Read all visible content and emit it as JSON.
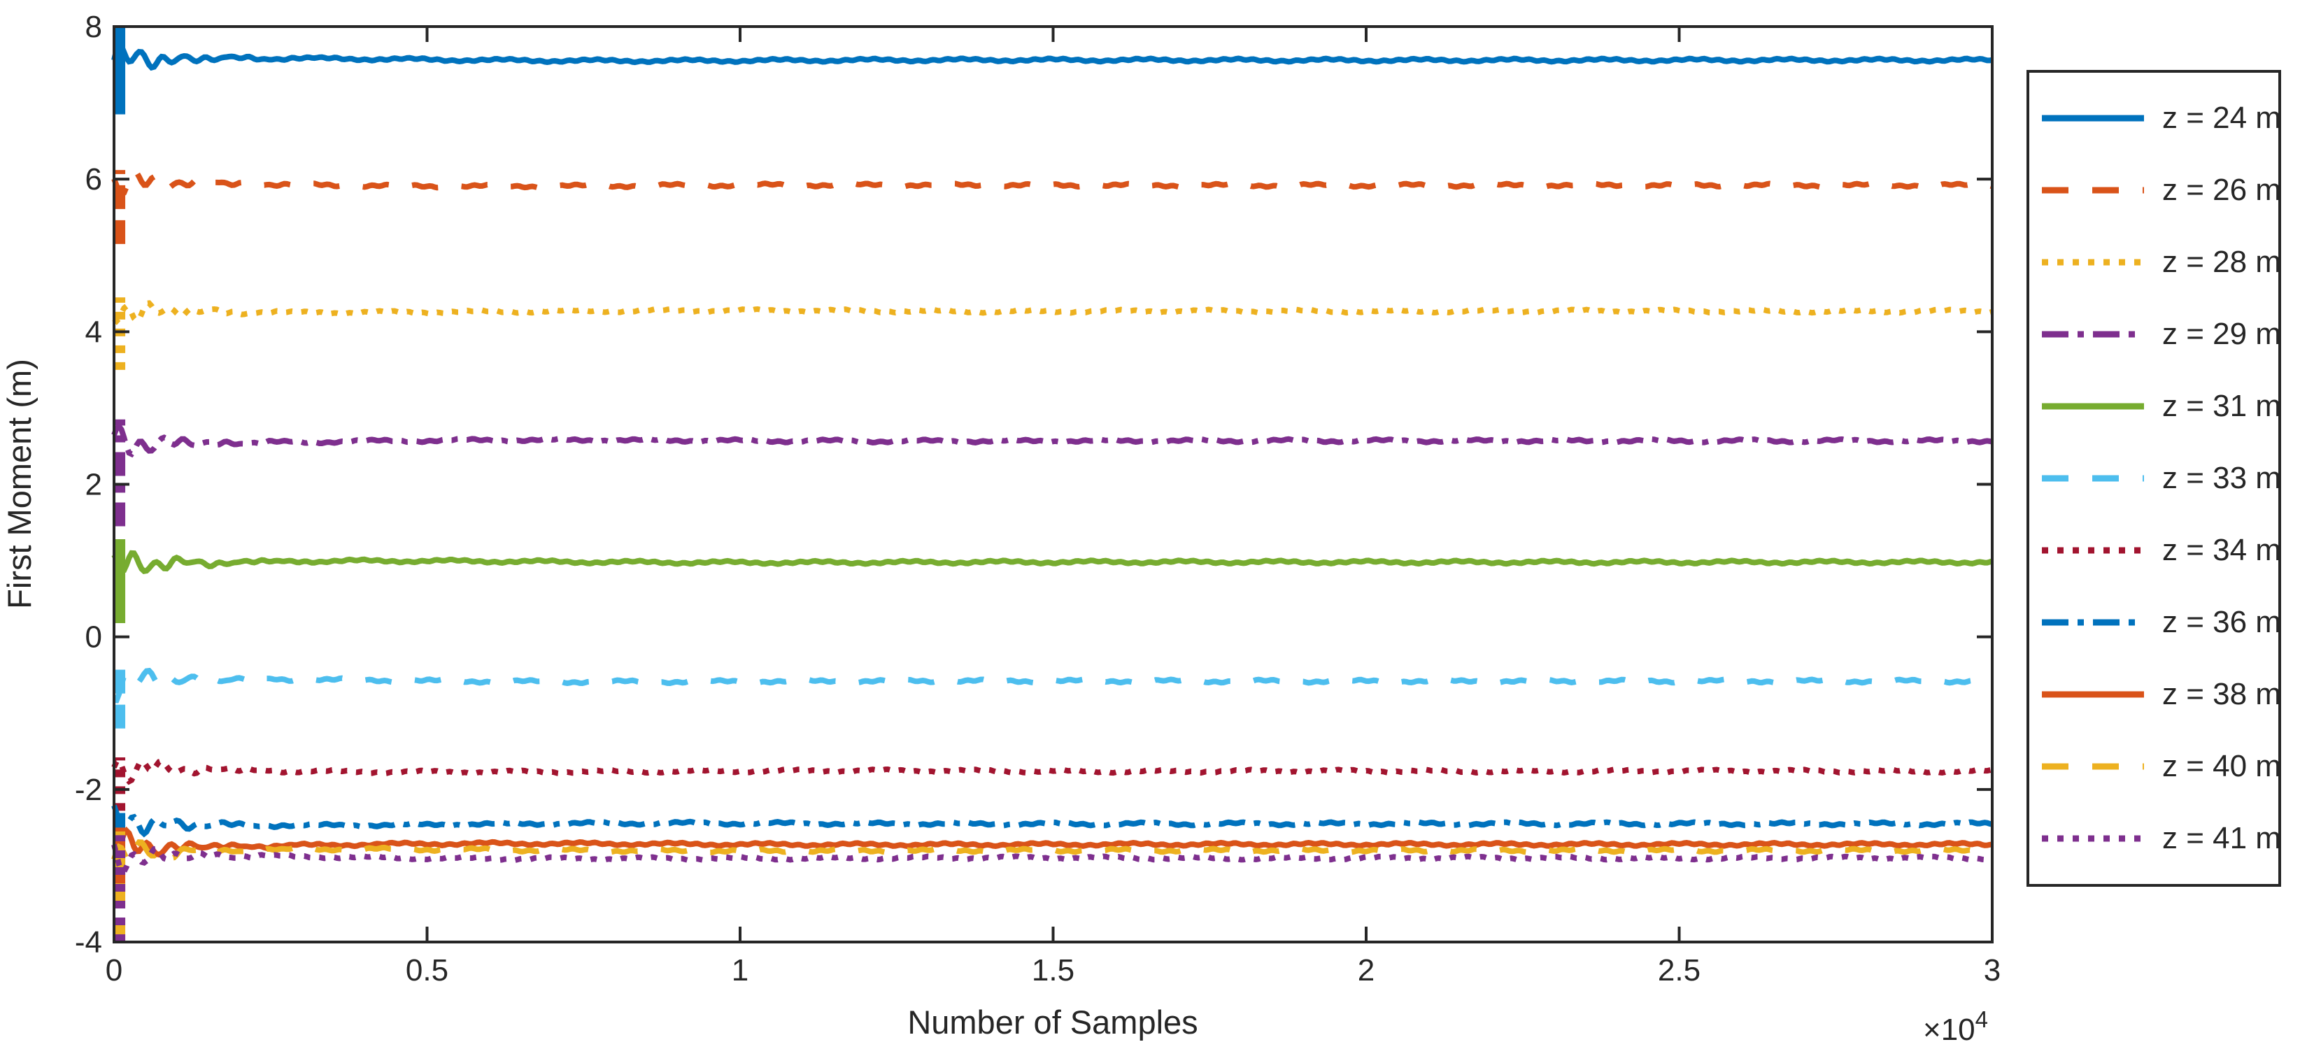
{
  "chart_data": {
    "type": "line",
    "title": "",
    "xlabel": "Number of Samples",
    "ylabel": "First Moment (m)",
    "x_multiplier": {
      "base": "×10",
      "exp": "4"
    },
    "xlim": [
      0,
      30000
    ],
    "ylim": [
      -4,
      8
    ],
    "xticks": [
      0,
      5000,
      10000,
      15000,
      20000,
      25000,
      30000
    ],
    "xtick_labels": [
      "0",
      "0.5",
      "1",
      "1.5",
      "2",
      "2.5",
      "3"
    ],
    "yticks": [
      8,
      6,
      4,
      2,
      0,
      -2,
      -4
    ],
    "ytick_labels": [
      "8",
      "6",
      "4",
      "2",
      "0",
      "-2",
      "-4"
    ],
    "grid": false,
    "box": true,
    "legend_position": "outside-right",
    "axis_color": "#262626",
    "background": "#ffffff",
    "series": [
      {
        "name": "z = 24 m",
        "color": "#0072BD",
        "style": "solid",
        "settle": 7.56,
        "transient": [
          6.85,
          8.0
        ]
      },
      {
        "name": "z = 26 m",
        "color": "#D95319",
        "style": "dashed",
        "settle": 5.92,
        "transient": [
          5.15,
          6.12
        ]
      },
      {
        "name": "z = 28 m",
        "color": "#EDB120",
        "style": "dotted",
        "settle": 4.27,
        "transient": [
          3.5,
          4.45
        ]
      },
      {
        "name": "z = 29 m",
        "color": "#7E2F8E",
        "style": "dashdot",
        "settle": 2.57,
        "transient": [
          1.45,
          2.85
        ]
      },
      {
        "name": "z = 31 m",
        "color": "#77AC30",
        "style": "solid",
        "settle": 0.98,
        "transient": [
          0.18,
          1.28
        ]
      },
      {
        "name": "z = 33 m",
        "color": "#4DBEEE",
        "style": "dashed",
        "settle": -0.58,
        "transient": [
          -1.2,
          -0.4
        ]
      },
      {
        "name": "z = 34 m",
        "color": "#A2142F",
        "style": "dotted",
        "settle": -1.76,
        "transient": [
          -2.28,
          -1.58
        ]
      },
      {
        "name": "z = 36 m",
        "color": "#0072BD",
        "style": "dashdot",
        "settle": -2.45,
        "transient": [
          -2.62,
          -2.28
        ]
      },
      {
        "name": "z = 38 m",
        "color": "#D95319",
        "style": "solid",
        "settle": -2.72,
        "transient": [
          -3.35,
          -2.5
        ]
      },
      {
        "name": "z = 40 m",
        "color": "#EDB120",
        "style": "dashed",
        "settle": -2.8,
        "transient": [
          -4.0,
          -2.55
        ]
      },
      {
        "name": "z = 41 m",
        "color": "#7E2F8E",
        "style": "dotted",
        "settle": -2.9,
        "transient": [
          -4.0,
          -2.6
        ]
      }
    ]
  }
}
